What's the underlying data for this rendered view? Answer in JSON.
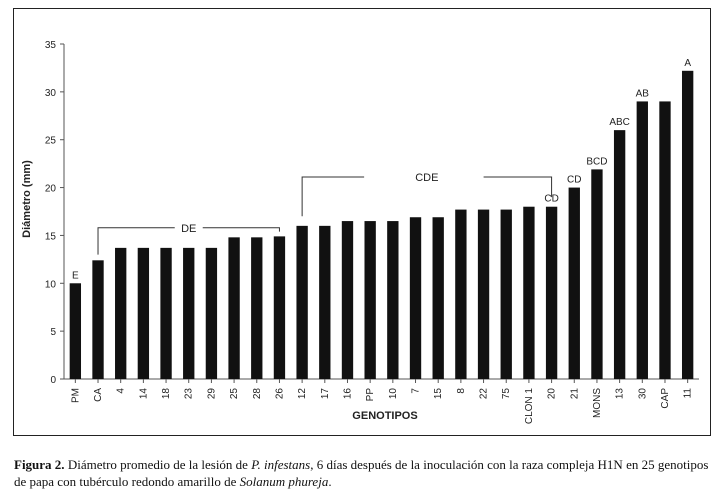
{
  "chart_data": {
    "type": "bar",
    "categories": [
      "PM",
      "CA",
      "4",
      "14",
      "18",
      "23",
      "29",
      "25",
      "28",
      "26",
      "12",
      "17",
      "16",
      "PP",
      "10",
      "7",
      "15",
      "8",
      "22",
      "75",
      "CLON 1",
      "20",
      "21",
      "MONS",
      "13",
      "30",
      "CAP",
      "11"
    ],
    "values": [
      10,
      12.4,
      13.7,
      13.7,
      13.7,
      13.7,
      13.7,
      14.8,
      14.8,
      14.9,
      16,
      16,
      16.5,
      16.5,
      16.5,
      16.9,
      16.9,
      17.7,
      17.7,
      17.7,
      18,
      18,
      20,
      21.9,
      26,
      29,
      29,
      32.2
    ],
    "letters": {
      "PM": "E",
      "20": "CD",
      "21": "CD",
      "MONS": "BCD",
      "13": "ABC",
      "30": "AB",
      "11": "A"
    },
    "group_labels": {
      "de": "DE",
      "cde": "CDE"
    },
    "ylabel": "Diámetro (mm)",
    "xlabel": "GENOTIPOS",
    "ylim": [
      0,
      35
    ],
    "yticks": [
      0,
      5,
      10,
      15,
      20,
      25,
      30,
      35
    ]
  },
  "caption": {
    "label": "Figura 2.",
    "text_1": " Diámetro promedio de la lesión de ",
    "species_1": "P. infestans",
    "text_2": ", 6 días después de la inoculación con la raza compleja H1N en 25 genotipos de papa con tubérculo redondo amarillo de ",
    "species_2": "Solanum phureja",
    "text_3": "."
  }
}
